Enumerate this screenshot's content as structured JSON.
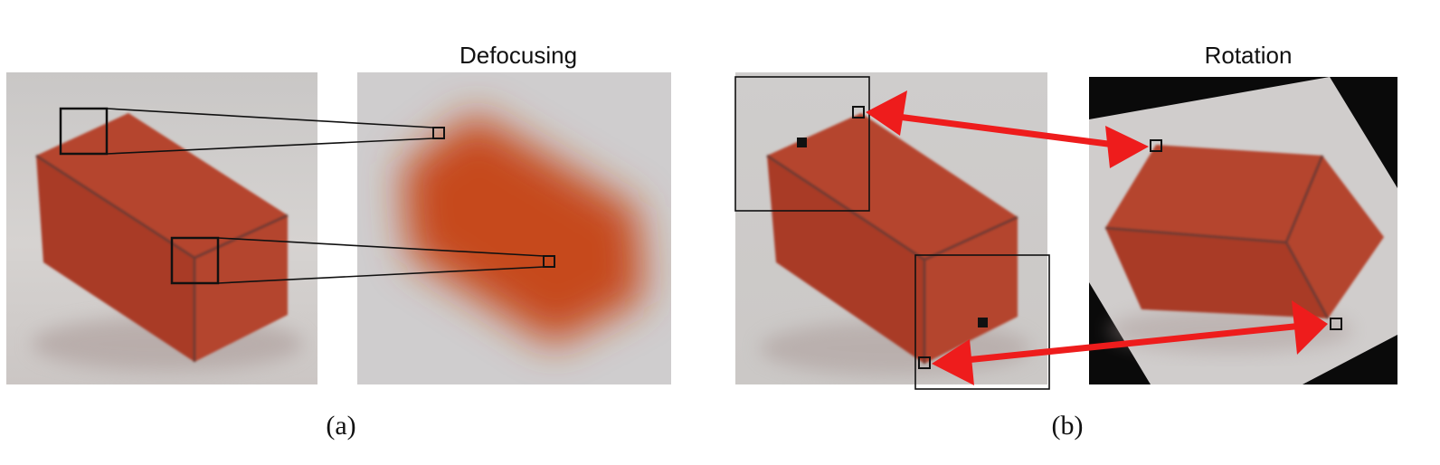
{
  "panel_a": {
    "title": "Defocusing",
    "caption": "(a)"
  },
  "panel_b": {
    "title": "Rotation",
    "caption": "(b)"
  },
  "colors": {
    "background": "#ffffff",
    "photo_background": "#cfcdcc",
    "brick_top": "#b5452e",
    "brick_front": "#a93b28",
    "brick_side": "#b4442f",
    "blur_orange": "#c6491f",
    "arrow_red": "#ee1c1c",
    "outline": "#111111",
    "rotated_corner": "#0a0a0a"
  }
}
